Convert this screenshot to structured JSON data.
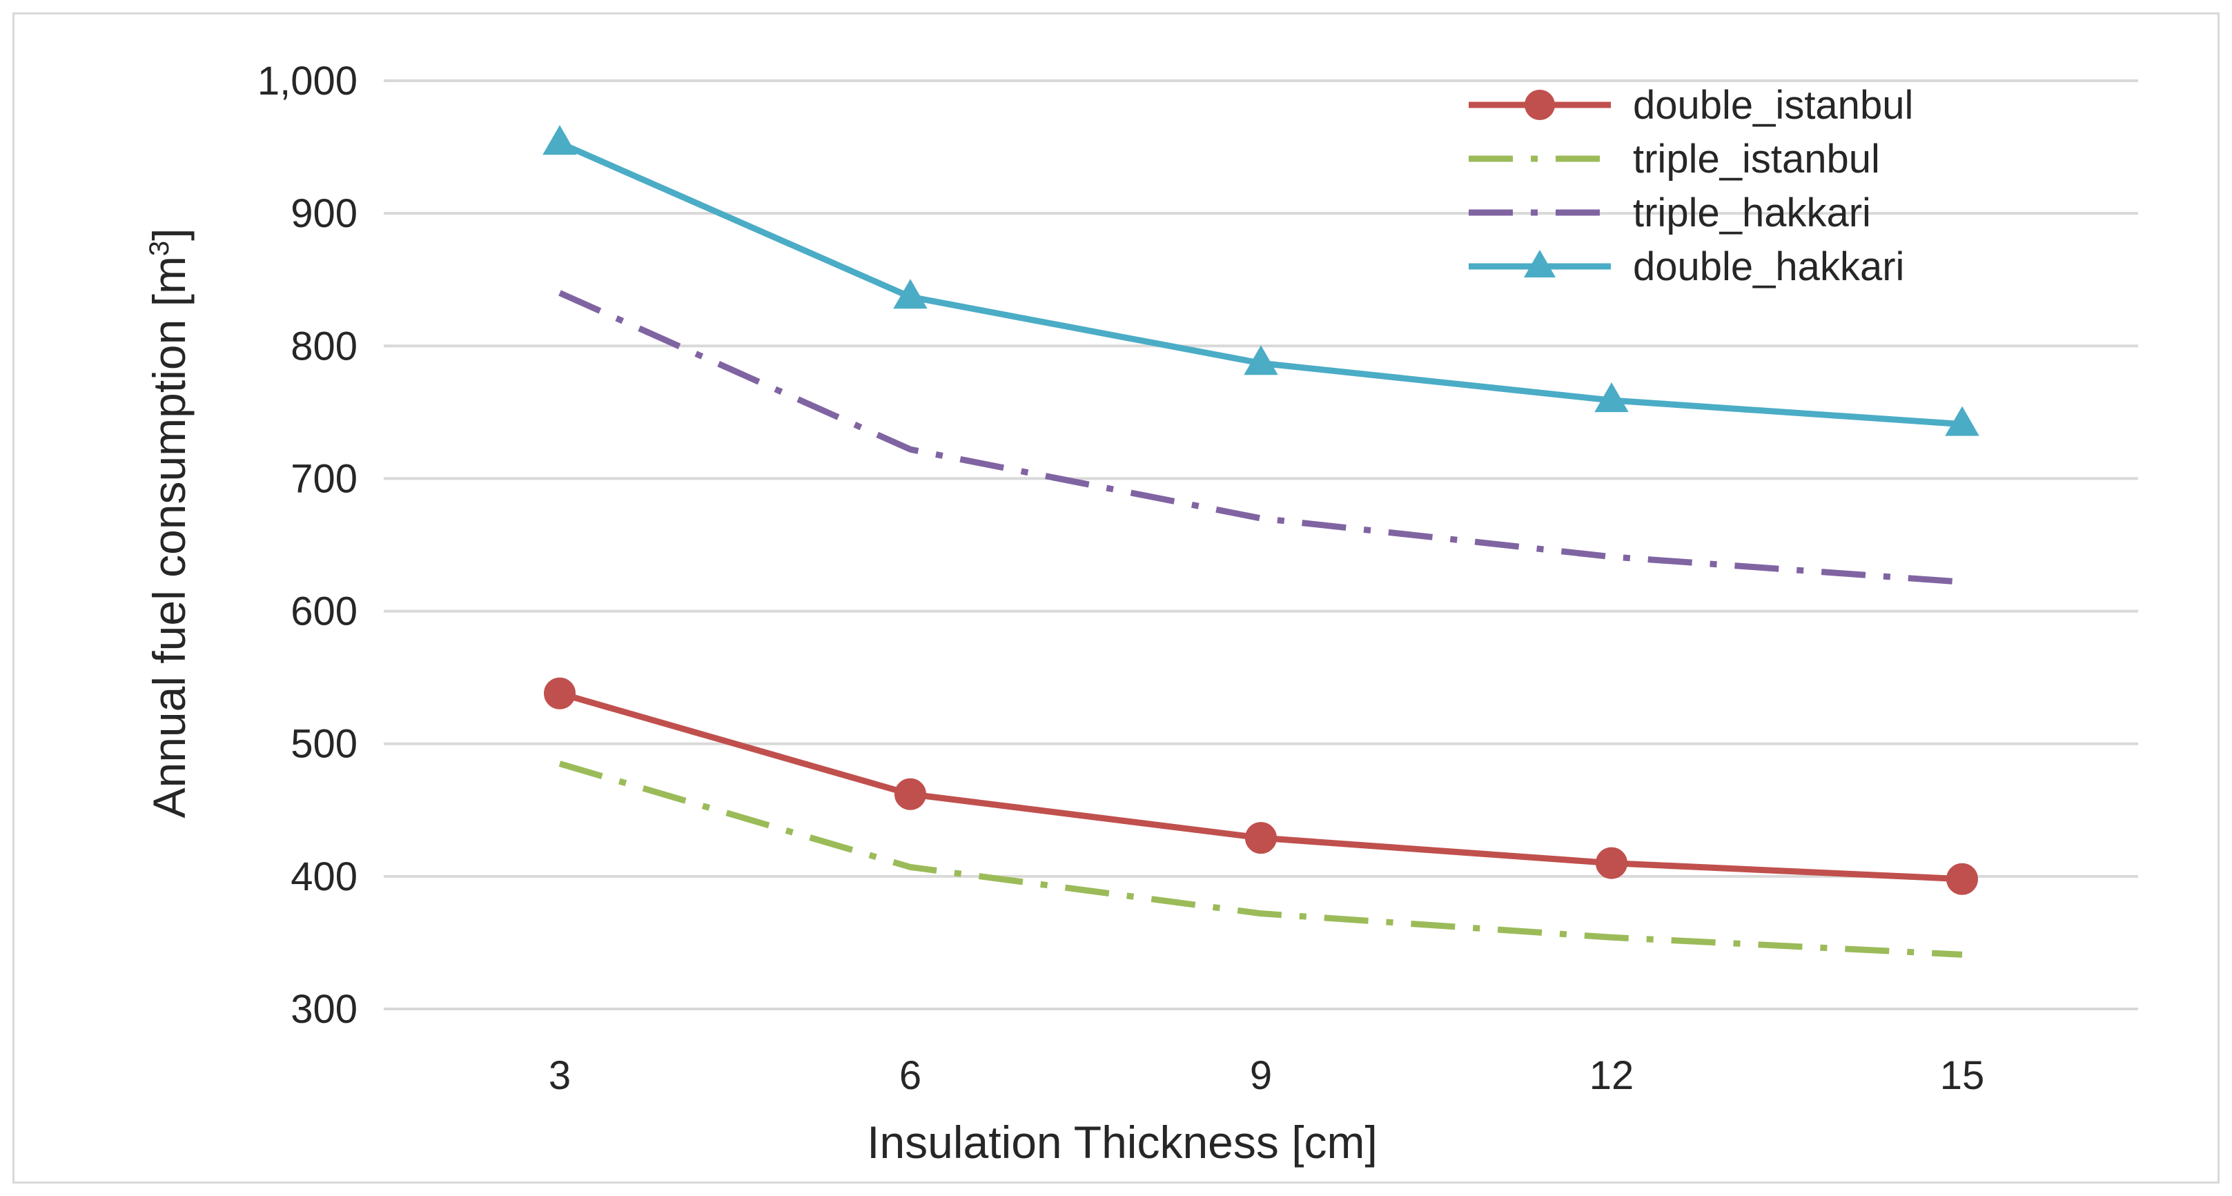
{
  "chart_data": {
    "type": "line",
    "title": "",
    "xlabel": "Insulation Thickness [cm]",
    "ylabel": "Annual fuel consumption [m",
    "ylabel_sup": "3",
    "ylabel_close": "]",
    "categories": [
      "3",
      "6",
      "9",
      "12",
      "15"
    ],
    "ylim": [
      300,
      1000
    ],
    "yticks": [
      300,
      400,
      500,
      600,
      700,
      800,
      900,
      1000
    ],
    "ytick_labels": [
      "300",
      "400",
      "500",
      "600",
      "700",
      "800",
      "900",
      "1,000"
    ],
    "grid": true,
    "legend_position": "top-right",
    "series": [
      {
        "name": "double_istanbul",
        "values": [
          538,
          462,
          429,
          410,
          398
        ],
        "color": "#c0504d",
        "dash": "solid",
        "marker": "circle"
      },
      {
        "name": "triple_istanbul",
        "values": [
          485,
          407,
          372,
          354,
          341
        ],
        "color": "#9bbb59",
        "dash": "dashdot",
        "marker": "none"
      },
      {
        "name": "triple_hakkari",
        "values": [
          840,
          722,
          670,
          641,
          622
        ],
        "color": "#8064a2",
        "dash": "dashdot",
        "marker": "none"
      },
      {
        "name": "double_hakkari",
        "values": [
          953,
          837,
          787,
          759,
          741
        ],
        "color": "#4bacc6",
        "dash": "solid",
        "marker": "triangle"
      }
    ]
  }
}
